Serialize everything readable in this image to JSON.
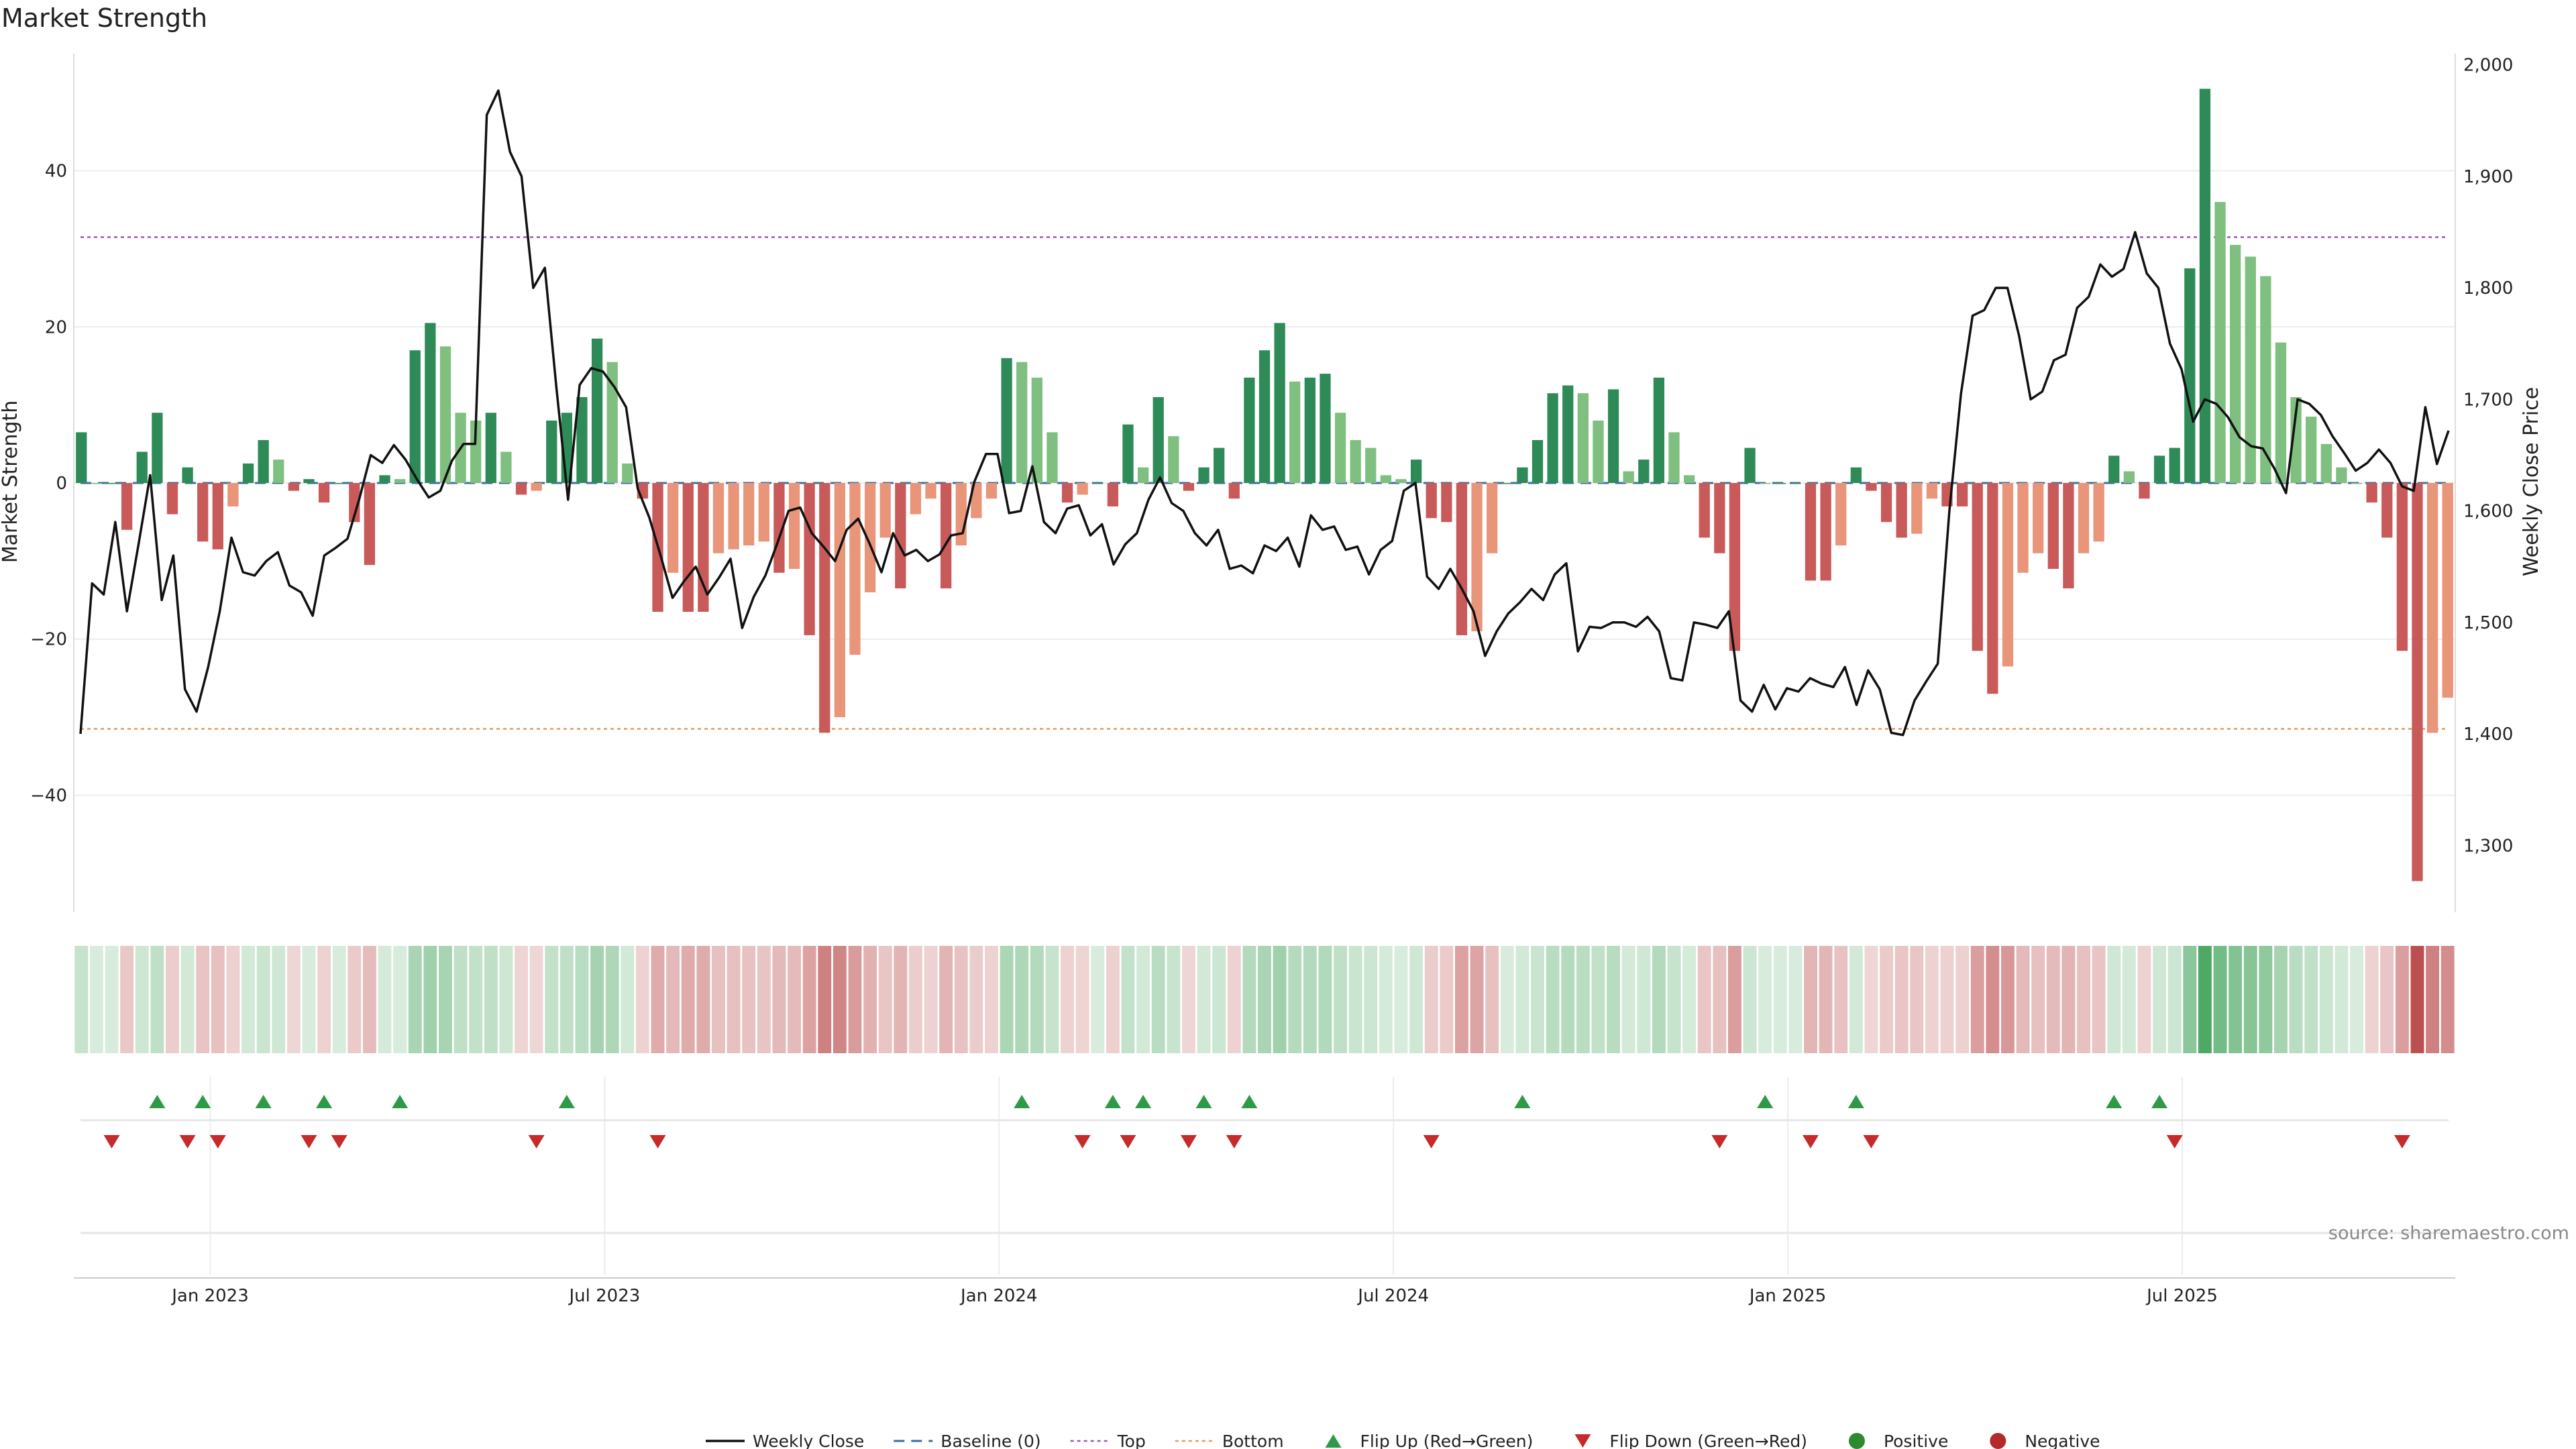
{
  "chart_data": {
    "type": "bar",
    "title": "Market Strength",
    "ylabel_left": "Market Strength",
    "ylabel_right": "Weekly Close Price",
    "ylim_left": [
      -55,
      55
    ],
    "ylim_right": [
      1240,
      2010
    ],
    "yticks_left": [
      {
        "value": 40,
        "label": "40"
      },
      {
        "value": 20,
        "label": "20"
      },
      {
        "value": 0,
        "label": "0"
      },
      {
        "value": -20,
        "label": "−20"
      },
      {
        "value": -40,
        "label": "−40"
      }
    ],
    "yticks_right": [
      {
        "value": 2000,
        "label": "2,000"
      },
      {
        "value": 1900,
        "label": "1,900"
      },
      {
        "value": 1800,
        "label": "1,800"
      },
      {
        "value": 1700,
        "label": "1,700"
      },
      {
        "value": 1600,
        "label": "1,600"
      },
      {
        "value": 1500,
        "label": "1,500"
      },
      {
        "value": 1400,
        "label": "1,400"
      },
      {
        "value": 1300,
        "label": "1,300"
      }
    ],
    "xticks": [
      {
        "index": 9,
        "label": "Jan 2023"
      },
      {
        "index": 35,
        "label": "Jul 2023"
      },
      {
        "index": 61,
        "label": "Jan 2024"
      },
      {
        "index": 87,
        "label": "Jul 2024"
      },
      {
        "index": 113,
        "label": "Jan 2025"
      },
      {
        "index": 139,
        "label": "Jul 2025"
      }
    ],
    "top_threshold": 31.5,
    "bottom_threshold": -31.5,
    "strength": [
      6.5,
      0,
      0,
      -6,
      4,
      9,
      -4,
      2,
      -7.5,
      -8.5,
      -3,
      2.5,
      5.5,
      3,
      -1,
      0.5,
      -2.5,
      0,
      -5,
      -10.5,
      1,
      0.5,
      17,
      20.5,
      17.5,
      9,
      8,
      9,
      4,
      -1.5,
      -1,
      8,
      9,
      11,
      18.5,
      15.5,
      2.5,
      -2,
      -16.5,
      -11.5,
      -16.5,
      -16.5,
      -9,
      -8.5,
      -8,
      -7.5,
      -11.5,
      -11,
      -19.5,
      -32,
      -30,
      -22,
      -14,
      -7,
      -13.5,
      -4,
      -2,
      -13.5,
      -8,
      -4.5,
      -2,
      16,
      15.5,
      13.5,
      6.5,
      -2.5,
      -1.5,
      0,
      -3,
      7.5,
      2,
      11,
      6,
      -1,
      2,
      4.5,
      -2,
      13.5,
      17,
      20.5,
      13,
      13.5,
      14,
      9,
      5.5,
      4.5,
      1,
      0.5,
      3,
      -4.5,
      -5,
      -19.5,
      -19,
      -9,
      0,
      2,
      5.5,
      11.5,
      12.5,
      11.5,
      8,
      12,
      1.5,
      3,
      13.5,
      6.5,
      1,
      -7,
      -9,
      -21.5,
      4.5,
      0,
      0,
      0,
      -12.5,
      -12.5,
      -8,
      2,
      -1,
      -5,
      -7,
      -6.5,
      -2,
      -3,
      -3,
      -21.5,
      -27,
      -23.5,
      -11.5,
      -9,
      -11,
      -13.5,
      -9,
      -7.5,
      3.5,
      1.5,
      -2,
      3.5,
      4.5,
      27.5,
      50.5,
      36,
      30.5,
      29,
      26.5,
      18,
      11,
      8.5,
      5,
      2,
      0,
      -2.5,
      -7,
      -21.5,
      -51,
      -32,
      -27.5
    ],
    "weekly_close": [
      1400,
      1535,
      1525,
      1590,
      1510,
      1570,
      1632,
      1520,
      1560,
      1440,
      1420,
      1460,
      1510,
      1576,
      1545,
      1542,
      1555,
      1563,
      1533,
      1527,
      1506,
      1560,
      1567,
      1575,
      1610,
      1650,
      1643,
      1659,
      1646,
      1628,
      1612,
      1618,
      1645,
      1660,
      1660,
      1955,
      1977,
      1922,
      1900,
      1800,
      1818,
      1710,
      1610,
      1713,
      1728,
      1725,
      1711,
      1693,
      1620,
      1594,
      1559,
      1522,
      1537,
      1550,
      1525,
      1540,
      1557,
      1495,
      1523,
      1542,
      1570,
      1600,
      1603,
      1580,
      1568,
      1555,
      1583,
      1593,
      1570,
      1545,
      1580,
      1560,
      1565,
      1555,
      1561,
      1578,
      1580,
      1626,
      1651,
      1651,
      1598,
      1600,
      1640,
      1590,
      1580,
      1602,
      1605,
      1578,
      1588,
      1552,
      1570,
      1580,
      1610,
      1630,
      1607,
      1600,
      1580,
      1569,
      1583,
      1548,
      1551,
      1544,
      1569,
      1564,
      1576,
      1550,
      1596,
      1583,
      1586,
      1565,
      1568,
      1543,
      1565,
      1573,
      1618,
      1625,
      1541,
      1530,
      1548,
      1530,
      1510,
      1470,
      1492,
      1508,
      1518,
      1530,
      1520,
      1543,
      1553,
      1474,
      1496,
      1495,
      1500,
      1500,
      1496,
      1505,
      1492,
      1450,
      1448,
      1500,
      1498,
      1495,
      1510,
      1430,
      1420,
      1444,
      1422,
      1441,
      1438,
      1450,
      1445,
      1442,
      1460,
      1426,
      1457,
      1440,
      1401,
      1399,
      1430,
      1447,
      1463,
      1600,
      1705,
      1775,
      1780,
      1800,
      1800,
      1757,
      1700,
      1707,
      1735,
      1740,
      1782,
      1792,
      1821,
      1810,
      1817,
      1850,
      1813,
      1800,
      1750,
      1727,
      1680,
      1700,
      1696,
      1684,
      1666,
      1658,
      1656,
      1638,
      1616,
      1700,
      1696,
      1686,
      1667,
      1652,
      1636,
      1643,
      1655,
      1643,
      1622,
      1618,
      1693,
      1642,
      1672
    ],
    "flip_up": [
      5,
      8,
      12,
      16,
      21,
      32,
      62,
      68,
      70,
      74,
      77,
      95,
      111,
      117,
      134,
      137
    ],
    "flip_down": [
      2,
      7,
      9,
      15,
      17,
      30,
      38,
      66,
      69,
      73,
      76,
      89,
      108,
      114,
      118,
      138,
      153
    ],
    "series": [
      {
        "name": "Weekly Close",
        "color": "#111111"
      },
      {
        "name": "Baseline (0)",
        "color": "#3d6fa0"
      },
      {
        "name": "Top",
        "color": "#9b59b6"
      },
      {
        "name": "Bottom",
        "color": "#e89a5a"
      },
      {
        "name": "Flip Up (Red→Green)",
        "color": "#2e9a48"
      },
      {
        "name": "Flip Down (Green→Red)",
        "color": "#c62a2a"
      },
      {
        "name": "Positive",
        "color": "#2e8a2e"
      },
      {
        "name": "Negative",
        "color": "#b22a2a"
      }
    ],
    "colors": {
      "strong_pos": "#2e8b57",
      "weak_pos": "#7fbf7f",
      "strong_neg": "#c85a5a",
      "weak_neg": "#e8957a"
    }
  },
  "source": "source: sharemaestro.com"
}
